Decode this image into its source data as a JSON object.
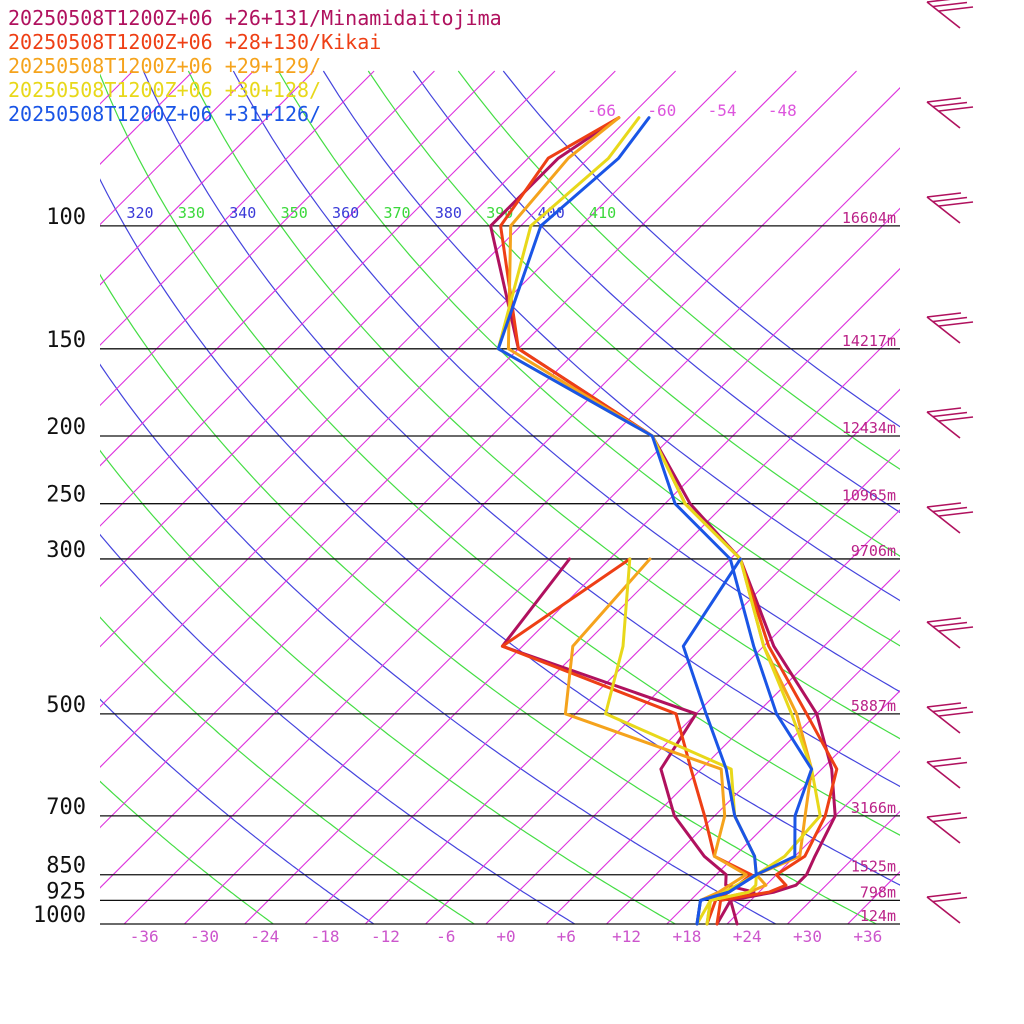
{
  "legend": [
    {
      "text": "20250508T1200Z+06 +26+131/Minamidaitojima",
      "color": "#b0115e"
    },
    {
      "text": "20250508T1200Z+06 +28+130/Kikai",
      "color": "#ee3f15"
    },
    {
      "text": "20250508T1200Z+06 +29+129/",
      "color": "#f5a31c"
    },
    {
      "text": "20250508T1200Z+06 +30+128/",
      "color": "#e8d81a"
    },
    {
      "text": "20250508T1200Z+06 +31+126/",
      "color": "#1a55e6"
    }
  ],
  "chart_data": {
    "type": "line",
    "title": "",
    "xlabel": "",
    "ylabel": "",
    "x_axis": {
      "scale": "skew-T temperature (°C)",
      "range": [
        -40,
        40
      ],
      "ticks": [
        "-36",
        "-30",
        "-24",
        "-18",
        "-12",
        "-6",
        "+0",
        "+6",
        "+12",
        "+18",
        "+24",
        "+30",
        "+36"
      ],
      "tick_values": [
        -36,
        -30,
        -24,
        -18,
        -12,
        -6,
        0,
        6,
        12,
        18,
        24,
        30,
        36
      ]
    },
    "y_axis": {
      "scale": "log pressure (hPa)",
      "range": [
        1000,
        70
      ],
      "ticks": [
        "100",
        "150",
        "200",
        "250",
        "300",
        "500",
        "700",
        "850",
        "925",
        "1000"
      ],
      "tick_values": [
        100,
        150,
        200,
        250,
        300,
        500,
        700,
        850,
        925,
        1000
      ]
    },
    "isotherm_labels": [
      {
        "text": "-66",
        "value": -66
      },
      {
        "text": "-60",
        "value": -60
      },
      {
        "text": "-54",
        "value": -54
      },
      {
        "text": "-48",
        "value": -48
      }
    ],
    "theta_labels": [
      {
        "text": "320",
        "color": "#3a3ad8"
      },
      {
        "text": "330",
        "color": "#3ad83a"
      },
      {
        "text": "340",
        "color": "#3a3ad8"
      },
      {
        "text": "350",
        "color": "#3ad83a"
      },
      {
        "text": "360",
        "color": "#3a3ad8"
      },
      {
        "text": "370",
        "color": "#3ad83a"
      },
      {
        "text": "380",
        "color": "#3a3ad8"
      },
      {
        "text": "390",
        "color": "#3ad83a"
      },
      {
        "text": "400",
        "color": "#3a3ad8"
      },
      {
        "text": "410",
        "color": "#3ad83a"
      }
    ],
    "height_labels": [
      {
        "p": 100,
        "text": "16604m"
      },
      {
        "p": 150,
        "text": "14217m"
      },
      {
        "p": 200,
        "text": "12434m"
      },
      {
        "p": 250,
        "text": "10965m"
      },
      {
        "p": 300,
        "text": "9706m"
      },
      {
        "p": 500,
        "text": "5887m"
      },
      {
        "p": 700,
        "text": "3166m"
      },
      {
        "p": 850,
        "text": "1525m"
      },
      {
        "p": 925,
        "text": "798m"
      },
      {
        "p": 1000,
        "text": "124m"
      }
    ],
    "grid": true,
    "legend_position": "top-left",
    "series": [
      {
        "name": "20250508T1200Z+06 +26+131/Minamidaitojima",
        "color": "#b0115e",
        "temperature": [
          [
            1000,
            23
          ],
          [
            925,
            20
          ],
          [
            900,
            23.5
          ],
          [
            880,
            25
          ],
          [
            850,
            25
          ],
          [
            800,
            24
          ],
          [
            700,
            22
          ],
          [
            600,
            17
          ],
          [
            500,
            10
          ],
          [
            400,
            -1
          ],
          [
            300,
            -13
          ],
          [
            250,
            -23.5
          ],
          [
            200,
            -34
          ],
          [
            150,
            -56
          ],
          [
            100,
            -71
          ],
          [
            80,
            -71
          ],
          [
            70,
            -69
          ]
        ],
        "dewpoint": [
          [
            1000,
            21
          ],
          [
            925,
            20
          ],
          [
            900,
            21.5
          ],
          [
            880,
            18
          ],
          [
            850,
            17
          ],
          [
            800,
            13
          ],
          [
            700,
            6
          ],
          [
            600,
            0
          ],
          [
            500,
            -2
          ],
          [
            400,
            -28
          ],
          [
            300,
            -30
          ]
        ]
      },
      {
        "name": "20250508T1200Z+06 +28+130/Kikai",
        "color": "#ee3f15",
        "temperature": [
          [
            1000,
            21
          ],
          [
            925,
            19
          ],
          [
            900,
            23
          ],
          [
            880,
            24
          ],
          [
            850,
            22
          ],
          [
            800,
            23
          ],
          [
            700,
            21
          ],
          [
            600,
            17.5
          ],
          [
            500,
            9
          ],
          [
            400,
            -1.5
          ],
          [
            300,
            -13
          ],
          [
            250,
            -24
          ],
          [
            200,
            -34
          ],
          [
            150,
            -56
          ],
          [
            100,
            -70
          ],
          [
            80,
            -72
          ],
          [
            70,
            -69
          ]
        ],
        "dewpoint": [
          [
            1000,
            20
          ],
          [
            925,
            18.5
          ],
          [
            900,
            19
          ],
          [
            850,
            19.5
          ],
          [
            800,
            14
          ],
          [
            700,
            9
          ],
          [
            600,
            3
          ],
          [
            500,
            -4
          ],
          [
            400,
            -28
          ],
          [
            300,
            -24
          ]
        ]
      },
      {
        "name": "20250508T1200Z+06 +29+129/",
        "color": "#f5a31c",
        "temperature": [
          [
            1000,
            20
          ],
          [
            925,
            18
          ],
          [
            900,
            21
          ],
          [
            880,
            22
          ],
          [
            850,
            20
          ],
          [
            800,
            22.5
          ],
          [
            700,
            19
          ],
          [
            600,
            15
          ],
          [
            500,
            8
          ],
          [
            400,
            -2
          ],
          [
            300,
            -13
          ],
          [
            250,
            -24
          ],
          [
            200,
            -34
          ],
          [
            150,
            -57
          ],
          [
            100,
            -69
          ],
          [
            80,
            -70
          ],
          [
            70,
            -69
          ]
        ],
        "dewpoint": [
          [
            1000,
            19
          ],
          [
            925,
            17
          ],
          [
            900,
            18
          ],
          [
            850,
            19
          ],
          [
            800,
            14
          ],
          [
            700,
            11
          ],
          [
            600,
            6
          ],
          [
            500,
            -15
          ],
          [
            400,
            -21
          ],
          [
            300,
            -22
          ]
        ]
      },
      {
        "name": "20250508T1200Z+06 +30+128/",
        "color": "#e8d81a",
        "temperature": [
          [
            1000,
            20
          ],
          [
            925,
            18
          ],
          [
            900,
            21
          ],
          [
            880,
            21
          ],
          [
            850,
            20
          ],
          [
            800,
            21
          ],
          [
            700,
            20.5
          ],
          [
            600,
            15
          ],
          [
            500,
            7.5
          ],
          [
            400,
            -2
          ],
          [
            300,
            -13
          ],
          [
            250,
            -24
          ],
          [
            200,
            -34
          ],
          [
            150,
            -58
          ],
          [
            100,
            -67
          ],
          [
            80,
            -66
          ],
          [
            70,
            -67
          ]
        ],
        "dewpoint": [
          [
            1000,
            19
          ],
          [
            925,
            18
          ],
          [
            900,
            18.5
          ],
          [
            850,
            20
          ],
          [
            800,
            18
          ],
          [
            700,
            12
          ],
          [
            600,
            7
          ],
          [
            500,
            -11
          ],
          [
            400,
            -16
          ],
          [
            300,
            -24
          ]
        ]
      },
      {
        "name": "20250508T1200Z+06 +31+126/",
        "color": "#1a55e6",
        "temperature": [
          [
            1000,
            19
          ],
          [
            925,
            17
          ],
          [
            900,
            19
          ],
          [
            850,
            20
          ],
          [
            800,
            22
          ],
          [
            700,
            18
          ],
          [
            600,
            15
          ],
          [
            500,
            6
          ],
          [
            400,
            -3
          ],
          [
            300,
            -14
          ],
          [
            250,
            -25
          ],
          [
            200,
            -34
          ],
          [
            150,
            -58
          ],
          [
            100,
            -66
          ],
          [
            80,
            -65
          ],
          [
            70,
            -66
          ]
        ],
        "dewpoint": [
          [
            1000,
            19
          ],
          [
            925,
            17
          ],
          [
            900,
            19
          ],
          [
            850,
            20
          ],
          [
            800,
            18
          ],
          [
            700,
            12
          ],
          [
            600,
            6.5
          ],
          [
            500,
            -1
          ],
          [
            400,
            -10
          ],
          [
            300,
            -13
          ]
        ]
      }
    ]
  }
}
